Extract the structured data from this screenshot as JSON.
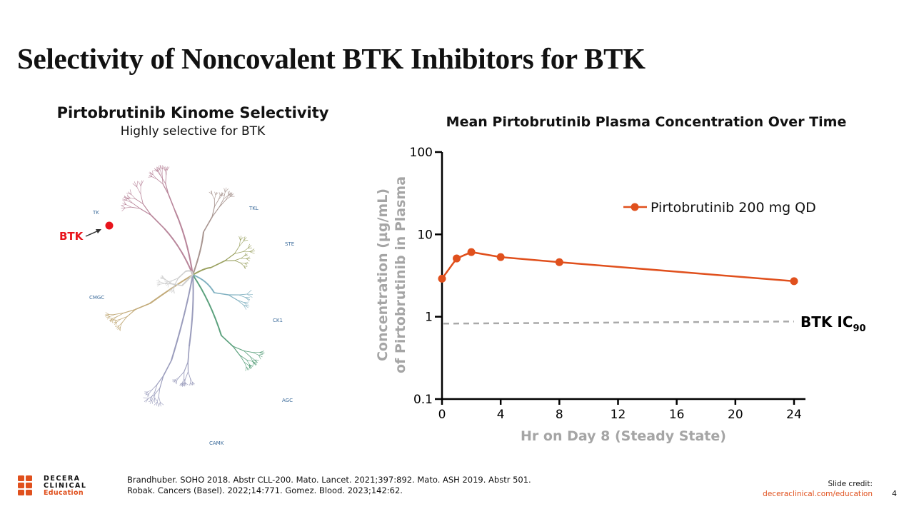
{
  "slide": {
    "title": "Selectivity of Noncovalent BTK Inhibitors for BTK",
    "page_number": "4"
  },
  "left_panel": {
    "title": "Pirtobrutinib Kinome Selectivity",
    "subtitle": "Highly selective for BTK",
    "btk_label": "BTK",
    "groups": {
      "tk": "TK",
      "tkl": "TKL",
      "ste": "STE",
      "ck1": "CK1",
      "agc": "AGC",
      "camk": "CAMK",
      "cmgc": "CMGC"
    },
    "colors": {
      "tk": "#b8859a",
      "tkl": "#a89590",
      "ste": "#9aa160",
      "ck1": "#7fb0c0",
      "agc": "#5aa07c",
      "camk": "#9a9cbc",
      "cmgc": "#c2aa78",
      "center": "#cfcfcf",
      "btk_marker": "#e8141c"
    }
  },
  "chart_data": {
    "type": "line",
    "title": "Mean Pirtobrutinib Plasma Concentration Over Time",
    "xlabel": "Hr on Day 8 (Steady State)",
    "ylabel_line1": "Concentration (µg/mL)",
    "ylabel_line2": "of Pirtobrutinib in Plasma",
    "y_scale": "log",
    "ylim": [
      0.1,
      100
    ],
    "xlim": [
      0,
      24
    ],
    "x_ticks": [
      0,
      4,
      8,
      12,
      16,
      20,
      24
    ],
    "y_ticks": [
      0.1,
      1,
      10,
      100
    ],
    "y_tick_labels": [
      "0.1",
      "1",
      "10",
      "100"
    ],
    "grid": false,
    "legend_position": "top-right",
    "series": [
      {
        "name": "Pirtobrutinib 200 mg QD",
        "color": "#e0501d",
        "x": [
          0,
          1,
          2,
          4,
          8,
          24
        ],
        "y": [
          2.9,
          5.1,
          6.1,
          5.3,
          4.6,
          2.7
        ]
      }
    ],
    "reference_line": {
      "y": 0.85,
      "label_main": "BTK IC",
      "label_sub": "90",
      "color": "#a9a9a9"
    }
  },
  "footer": {
    "logo_line1": "DECERA",
    "logo_line2": "CLINICAL",
    "logo_line3": "Education",
    "refs_line1": "Brandhuber. SOHO 2018. Abstr CLL-200. Mato. Lancet. 2021;397:892. Mato. ASH 2019. Abstr 501.",
    "refs_line2": "Robak. Cancers (Basel). 2022;14:771. Gomez. Blood. 2023;142:62.",
    "credit_label": "Slide credit:",
    "credit_url": "deceraclinical.com/education",
    "accent": "#e0501d"
  }
}
